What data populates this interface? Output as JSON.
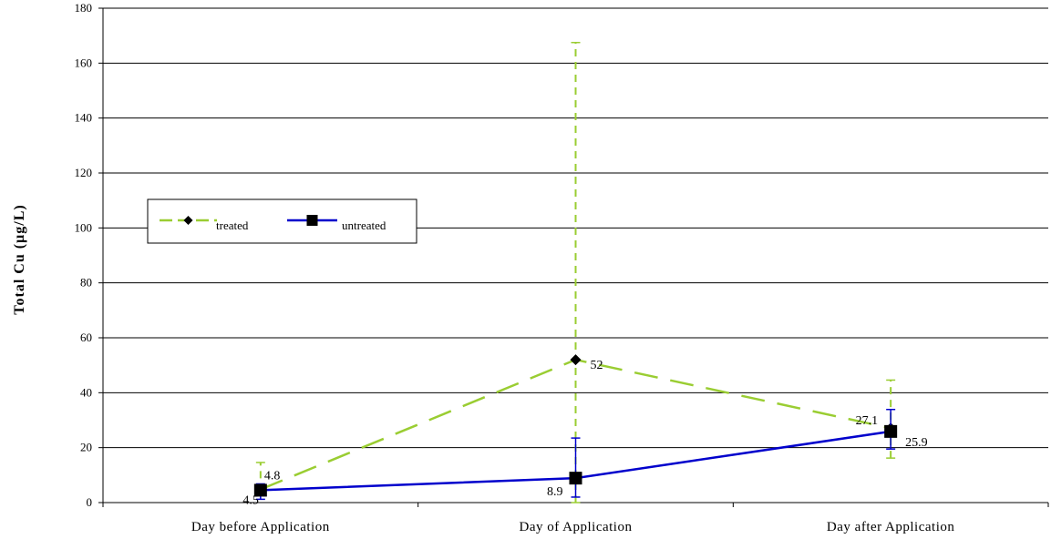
{
  "chart_data": {
    "type": "line",
    "ylabel": "Total Cu (µg/L)",
    "xlabel": "",
    "ylim": [
      0,
      180
    ],
    "yticks": [
      0,
      20,
      40,
      60,
      80,
      100,
      120,
      140,
      160,
      180
    ],
    "grid": "horizontal",
    "legend_position": "upper-left",
    "categories": [
      "Day before Application",
      "Day of Application",
      "Day after Application"
    ],
    "series": [
      {
        "name": "treated",
        "color": "#9acd32",
        "line_style": "dashed",
        "marker": "diamond",
        "values": [
          4.8,
          52,
          27.1
        ],
        "error_low": [
          4.2,
          0,
          16.2
        ],
        "error_high": [
          14.6,
          167.5,
          44.6
        ],
        "labels": [
          "4.8",
          "52",
          "27.1"
        ]
      },
      {
        "name": "untreated",
        "color": "#0000cc",
        "line_style": "solid",
        "marker": "square",
        "values": [
          4.5,
          8.9,
          25.9
        ],
        "error_low": [
          1.2,
          2.0,
          19.5
        ],
        "error_high": [
          6.8,
          23.5,
          33.9
        ],
        "labels": [
          "4.5",
          "8.9",
          "25.9"
        ]
      }
    ]
  }
}
